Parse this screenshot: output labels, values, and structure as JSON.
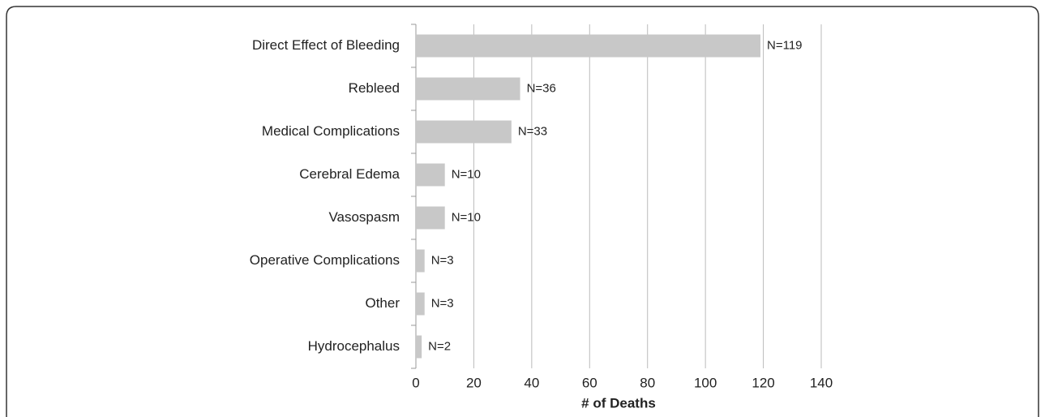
{
  "chart_data": {
    "type": "bar",
    "orientation": "horizontal",
    "xlabel": "# of Deaths",
    "categories": [
      "Direct Effect of Bleeding",
      "Rebleed",
      "Medical Complications",
      "Cerebral Edema",
      "Vasospasm",
      "Operative Complications",
      "Other",
      "Hydrocephalus"
    ],
    "values": [
      119,
      36,
      33,
      10,
      10,
      3,
      3,
      2
    ],
    "value_labels": [
      "N=119",
      "N=36",
      "N=33",
      "N=10",
      "N=10",
      "N=3",
      "N=3",
      "N=2"
    ],
    "color": "#c8c8c8",
    "xlim": [
      0,
      140
    ],
    "xticks": [
      0,
      20,
      40,
      60,
      80,
      100,
      120,
      140
    ],
    "grid": true
  }
}
